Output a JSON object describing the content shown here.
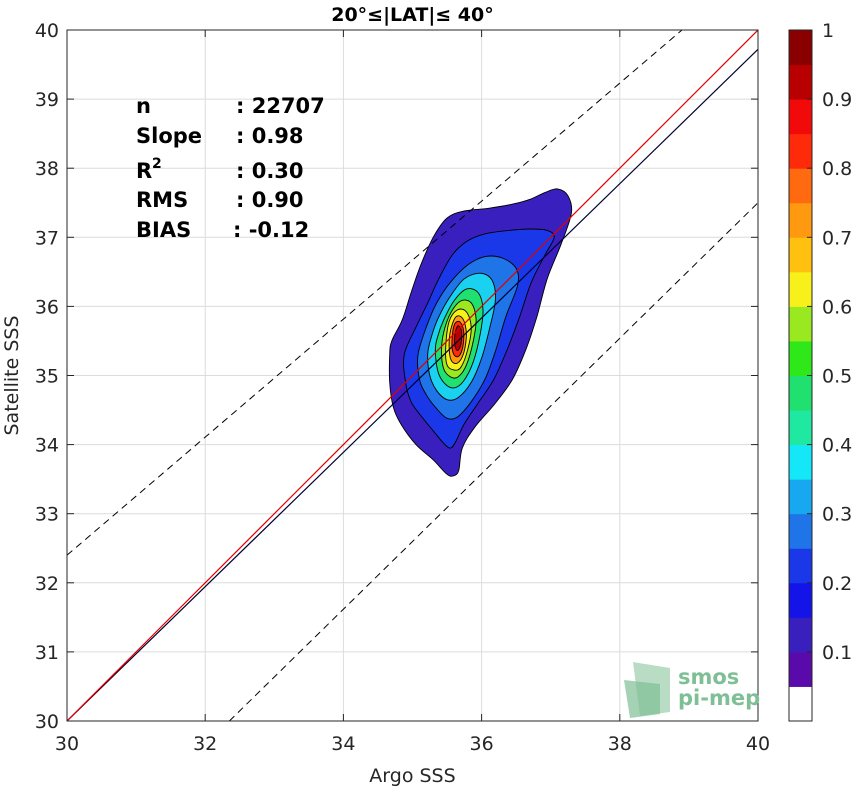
{
  "chart_data": {
    "type": "contour",
    "title": "20°≤|LAT|≤ 40°",
    "xlabel": "Argo SSS",
    "ylabel": "Satellite SSS",
    "xlim": [
      30,
      40
    ],
    "ylim": [
      30,
      40
    ],
    "xticks": [
      "30",
      "32",
      "34",
      "36",
      "38",
      "40"
    ],
    "yticks": [
      "30",
      "31",
      "32",
      "33",
      "34",
      "35",
      "36",
      "37",
      "38",
      "39",
      "40"
    ],
    "grid": true,
    "stats": [
      {
        "label": "n",
        "value": ": 22707"
      },
      {
        "label": "Slope",
        "value": ": 0.98"
      },
      {
        "label": "R",
        "sup": "2",
        "value": ": 0.30"
      },
      {
        "label": "RMS",
        "value": ": 0.90"
      },
      {
        "label": "BIAS",
        "value": ": -0.12"
      }
    ],
    "regression_line": {
      "x": [
        30,
        40
      ],
      "y": [
        30,
        39.72
      ],
      "color": "#000033"
    },
    "identity_line": {
      "x": [
        30,
        40
      ],
      "y": [
        30,
        40
      ],
      "color": "#e00000"
    },
    "offset_lines": [
      {
        "x": [
          30,
          38.9
        ],
        "y": [
          32.4,
          40
        ],
        "style": "dashed"
      },
      {
        "x": [
          32.35,
          40
        ],
        "y": [
          30,
          37.5
        ],
        "style": "dashed"
      }
    ],
    "density_center": {
      "x": 35.65,
      "y": 35.6
    },
    "contours": [
      {
        "level": 0.05,
        "color": "#3a1fbf",
        "points": [
          [
            34.67,
            35.3
          ],
          [
            34.67,
            34.9
          ],
          [
            34.72,
            34.55
          ],
          [
            34.83,
            34.3
          ],
          [
            35.05,
            34.0
          ],
          [
            35.3,
            33.78
          ],
          [
            35.5,
            33.57
          ],
          [
            35.6,
            33.55
          ],
          [
            35.67,
            33.63
          ],
          [
            35.72,
            33.95
          ],
          [
            35.9,
            34.25
          ],
          [
            36.2,
            34.6
          ],
          [
            36.45,
            34.95
          ],
          [
            36.65,
            35.4
          ],
          [
            36.8,
            35.85
          ],
          [
            36.95,
            36.4
          ],
          [
            37.15,
            36.9
          ],
          [
            37.3,
            37.35
          ],
          [
            37.25,
            37.6
          ],
          [
            37.1,
            37.7
          ],
          [
            36.92,
            37.65
          ],
          [
            36.7,
            37.55
          ],
          [
            36.45,
            37.48
          ],
          [
            36.1,
            37.42
          ],
          [
            35.75,
            37.38
          ],
          [
            35.5,
            37.28
          ],
          [
            35.3,
            37.0
          ],
          [
            35.12,
            36.6
          ],
          [
            34.98,
            36.2
          ],
          [
            34.85,
            35.8
          ],
          [
            34.7,
            35.5
          ]
        ]
      },
      {
        "level": 0.15,
        "color": "#1a38e8",
        "points": [
          [
            34.88,
            35.3
          ],
          [
            34.9,
            34.9
          ],
          [
            34.98,
            34.62
          ],
          [
            35.12,
            34.42
          ],
          [
            35.3,
            34.2
          ],
          [
            35.45,
            34.02
          ],
          [
            35.55,
            33.95
          ],
          [
            35.63,
            34.05
          ],
          [
            35.75,
            34.3
          ],
          [
            35.95,
            34.6
          ],
          [
            36.18,
            34.95
          ],
          [
            36.38,
            35.4
          ],
          [
            36.55,
            35.85
          ],
          [
            36.72,
            36.35
          ],
          [
            36.92,
            36.75
          ],
          [
            37.05,
            37.0
          ],
          [
            36.95,
            37.1
          ],
          [
            36.7,
            37.12
          ],
          [
            36.4,
            37.1
          ],
          [
            36.05,
            37.05
          ],
          [
            35.8,
            36.95
          ],
          [
            35.58,
            36.75
          ],
          [
            35.38,
            36.4
          ],
          [
            35.22,
            36.05
          ],
          [
            35.05,
            35.7
          ]
        ]
      },
      {
        "level": 0.25,
        "color": "#1f74e8",
        "points": [
          [
            35.08,
            35.3
          ],
          [
            35.1,
            34.95
          ],
          [
            35.2,
            34.72
          ],
          [
            35.35,
            34.52
          ],
          [
            35.5,
            34.38
          ],
          [
            35.65,
            34.4
          ],
          [
            35.85,
            34.62
          ],
          [
            36.05,
            34.95
          ],
          [
            36.2,
            35.35
          ],
          [
            36.35,
            35.85
          ],
          [
            36.52,
            36.3
          ],
          [
            36.5,
            36.55
          ],
          [
            36.3,
            36.7
          ],
          [
            36.05,
            36.72
          ],
          [
            35.8,
            36.6
          ],
          [
            35.55,
            36.35
          ],
          [
            35.35,
            36.05
          ],
          [
            35.2,
            35.7
          ]
        ]
      },
      {
        "level": 0.35,
        "color": "#1ad2f0",
        "points": [
          [
            35.22,
            35.3
          ],
          [
            35.25,
            35.0
          ],
          [
            35.35,
            34.78
          ],
          [
            35.5,
            34.65
          ],
          [
            35.66,
            34.68
          ],
          [
            35.85,
            34.9
          ],
          [
            36.0,
            35.25
          ],
          [
            36.12,
            35.7
          ],
          [
            36.2,
            36.1
          ],
          [
            36.15,
            36.38
          ],
          [
            35.98,
            36.48
          ],
          [
            35.75,
            36.4
          ],
          [
            35.55,
            36.15
          ],
          [
            35.38,
            35.85
          ],
          [
            35.27,
            35.55
          ]
        ]
      },
      {
        "level": 0.45,
        "color": "#20e070",
        "points": [
          [
            35.33,
            35.35
          ],
          [
            35.37,
            35.05
          ],
          [
            35.47,
            34.88
          ],
          [
            35.6,
            34.82
          ],
          [
            35.74,
            34.92
          ],
          [
            35.88,
            35.2
          ],
          [
            35.98,
            35.6
          ],
          [
            36.02,
            35.95
          ],
          [
            35.95,
            36.2
          ],
          [
            35.78,
            36.25
          ],
          [
            35.6,
            36.08
          ],
          [
            35.45,
            35.8
          ],
          [
            35.36,
            35.55
          ]
        ]
      },
      {
        "level": 0.55,
        "color": "#9ae820",
        "points": [
          [
            35.42,
            35.35
          ],
          [
            35.45,
            35.1
          ],
          [
            35.55,
            34.98
          ],
          [
            35.66,
            34.98
          ],
          [
            35.78,
            35.15
          ],
          [
            35.88,
            35.5
          ],
          [
            35.92,
            35.82
          ],
          [
            35.85,
            36.05
          ],
          [
            35.7,
            36.08
          ],
          [
            35.55,
            35.9
          ],
          [
            35.45,
            35.62
          ]
        ]
      },
      {
        "level": 0.65,
        "color": "#f7f01a",
        "points": [
          [
            35.48,
            35.4
          ],
          [
            35.5,
            35.15
          ],
          [
            35.6,
            35.08
          ],
          [
            35.7,
            35.12
          ],
          [
            35.8,
            35.38
          ],
          [
            35.85,
            35.7
          ],
          [
            35.78,
            35.92
          ],
          [
            35.65,
            35.95
          ],
          [
            35.53,
            35.78
          ]
        ]
      },
      {
        "level": 0.75,
        "color": "#ff9a10",
        "points": [
          [
            35.53,
            35.42
          ],
          [
            35.56,
            35.22
          ],
          [
            35.65,
            35.18
          ],
          [
            35.74,
            35.32
          ],
          [
            35.78,
            35.6
          ],
          [
            35.73,
            35.82
          ],
          [
            35.63,
            35.85
          ],
          [
            35.55,
            35.65
          ]
        ]
      },
      {
        "level": 0.85,
        "color": "#ff2a0a",
        "points": [
          [
            35.57,
            35.45
          ],
          [
            35.6,
            35.3
          ],
          [
            35.67,
            35.28
          ],
          [
            35.73,
            35.42
          ],
          [
            35.74,
            35.65
          ],
          [
            35.68,
            35.78
          ],
          [
            35.6,
            35.72
          ]
        ]
      },
      {
        "level": 0.95,
        "color": "#b80000",
        "points": [
          [
            35.61,
            35.45
          ],
          [
            35.65,
            35.36
          ],
          [
            35.7,
            35.45
          ],
          [
            35.71,
            35.64
          ],
          [
            35.66,
            35.72
          ],
          [
            35.62,
            35.62
          ]
        ]
      }
    ],
    "colorbar": {
      "range": [
        0,
        1
      ],
      "ticks": [
        "0.1",
        "0.2",
        "0.3",
        "0.4",
        "0.5",
        "0.6",
        "0.7",
        "0.8",
        "0.9",
        "1"
      ],
      "colors": [
        "#ffffff",
        "#5a0aaa",
        "#3a1fbf",
        "#1414e8",
        "#1a38e8",
        "#1f74e8",
        "#17a8f0",
        "#14e8f8",
        "#1fe8a0",
        "#20e070",
        "#2ee81a",
        "#9ae820",
        "#f7f01a",
        "#ffc010",
        "#ff9a10",
        "#ff6a10",
        "#ff2a0a",
        "#f20a0a",
        "#b80000",
        "#8a0000"
      ]
    },
    "logo": {
      "line1": "smos",
      "line2": "pi-mep",
      "color": "#7fbf95"
    }
  }
}
